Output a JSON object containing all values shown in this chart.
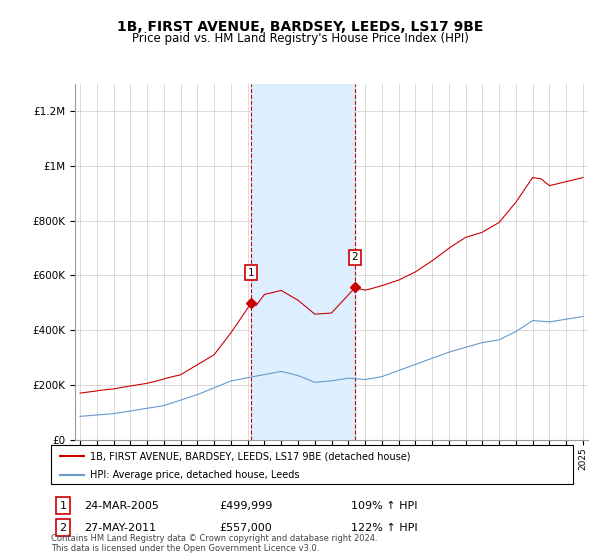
{
  "title": "1B, FIRST AVENUE, BARDSEY, LEEDS, LS17 9BE",
  "subtitle": "Price paid vs. HM Land Registry's House Price Index (HPI)",
  "legend_line1": "1B, FIRST AVENUE, BARDSEY, LEEDS, LS17 9BE (detached house)",
  "legend_line2": "HPI: Average price, detached house, Leeds",
  "footnote": "Contains HM Land Registry data © Crown copyright and database right 2024.\nThis data is licensed under the Open Government Licence v3.0.",
  "sale1_date": "24-MAR-2005",
  "sale1_price": 499999,
  "sale1_label": "109% ↑ HPI",
  "sale2_date": "27-MAY-2011",
  "sale2_price": 557000,
  "sale2_label": "122% ↑ HPI",
  "sale1_year": 2005.22,
  "sale2_year": 2011.39,
  "red_color": "#cc0000",
  "blue_color": "#6699cc",
  "shade_color": "#ddeeff",
  "ylim": [
    0,
    1300000
  ],
  "xlim_start": 1994.7,
  "xlim_end": 2025.3
}
